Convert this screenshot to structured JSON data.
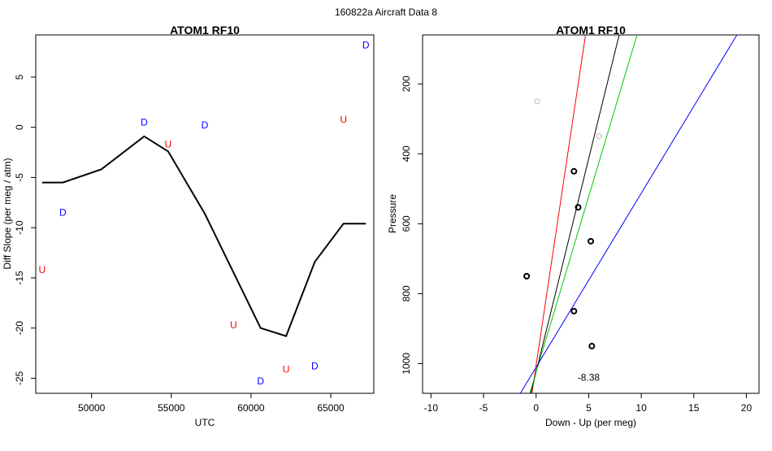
{
  "page_title": "160822a   Aircraft Data 8",
  "colors": {
    "D": "#0000ff",
    "U": "#ff0000",
    "line": "#000000"
  },
  "chart_data": [
    {
      "type": "line",
      "title": "ATOM1 RF10",
      "xlabel": "UTC",
      "ylabel": "Diff Slope (per meg / atm)",
      "xlim": [
        46500,
        67700
      ],
      "ylim": [
        -26.5,
        9.2
      ],
      "xticks": [
        50000,
        55000,
        60000,
        65000
      ],
      "xtick_labels": [
        "50000",
        "55000",
        "60000",
        "65000"
      ],
      "yticks": [
        5,
        0,
        -5,
        -10,
        -15,
        -20,
        -25
      ],
      "ytick_labels": [
        "5",
        "0",
        "-5",
        "-10",
        "-15",
        "-20",
        "-25"
      ],
      "series": [
        {
          "x": [
            46900,
            48200,
            50600,
            53300,
            54800,
            57100,
            60600,
            62200,
            64000,
            65800,
            67200
          ],
          "y": [
            -5.5,
            -5.5,
            -4.2,
            -0.9,
            -2.4,
            -8.6,
            -20.0,
            -20.8,
            -13.4,
            -9.6,
            -9.6
          ]
        }
      ],
      "annotations": [
        {
          "label": "D",
          "x": 67200,
          "y": 8.2
        },
        {
          "label": "U",
          "x": 65800,
          "y": 0.8
        },
        {
          "label": "D",
          "x": 53300,
          "y": 0.5
        },
        {
          "label": "D",
          "x": 57100,
          "y": 0.2
        },
        {
          "label": "U",
          "x": 54800,
          "y": -1.7
        },
        {
          "label": "D",
          "x": 48200,
          "y": -8.5
        },
        {
          "label": "U",
          "x": 46900,
          "y": -14.2
        },
        {
          "label": "U",
          "x": 58900,
          "y": -19.7
        },
        {
          "label": "U",
          "x": 62200,
          "y": -24.1
        },
        {
          "label": "D",
          "x": 64000,
          "y": -23.8
        },
        {
          "label": "D",
          "x": 60600,
          "y": -25.3
        }
      ]
    },
    {
      "type": "scatter",
      "title": "ATOM1 RF10",
      "xlabel": "Down - Up (per meg)",
      "ylabel": "Pressure",
      "xlim": [
        -10.8,
        21.2
      ],
      "ylim": [
        1085,
        60
      ],
      "xticks": [
        -10,
        -5,
        0,
        5,
        10,
        15,
        20
      ],
      "xtick_labels": [
        "-10",
        "-5",
        "0",
        "5",
        "10",
        "15",
        "20"
      ],
      "yticks": [
        200,
        400,
        600,
        800,
        1000
      ],
      "ytick_labels": [
        "200",
        "400",
        "600",
        "800",
        "1000"
      ],
      "points": [
        {
          "x": 3.6,
          "y": 450,
          "color": "#000000"
        },
        {
          "x": 4.0,
          "y": 553,
          "color": "#000000"
        },
        {
          "x": 5.2,
          "y": 650,
          "color": "#000000"
        },
        {
          "x": -0.9,
          "y": 750,
          "color": "#000000"
        },
        {
          "x": 3.6,
          "y": 850,
          "color": "#000000"
        },
        {
          "x": 5.3,
          "y": 950,
          "color": "#000000"
        },
        {
          "x": 0.1,
          "y": 250,
          "color": "#bbbbbb"
        },
        {
          "x": 6.0,
          "y": 350,
          "color": "#bbbbbb"
        }
      ],
      "lines": [
        {
          "color": "#ff0000",
          "x": [
            -0.4,
            4.7
          ],
          "y": [
            1085,
            60
          ]
        },
        {
          "color": "#000000",
          "x": [
            -0.5,
            7.9
          ],
          "y": [
            1085,
            60
          ]
        },
        {
          "color": "#00cc00",
          "x": [
            -0.6,
            9.6
          ],
          "y": [
            1085,
            60
          ]
        },
        {
          "color": "#0000ff",
          "x": [
            -1.5,
            19.1
          ],
          "y": [
            1085,
            60
          ]
        }
      ],
      "annotations": [
        {
          "label": "-8.38",
          "x": 5.0,
          "y": 1040
        }
      ]
    }
  ]
}
